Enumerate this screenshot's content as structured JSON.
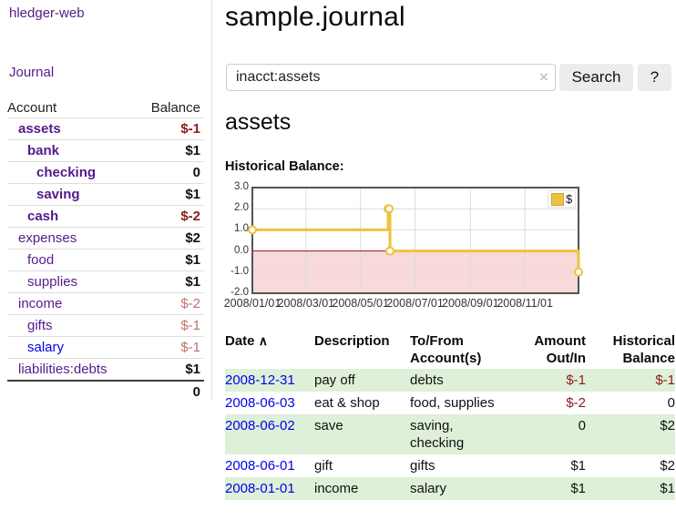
{
  "colors": {
    "link_purple": "#551a8b",
    "link_blue": "#0000ee",
    "negative_strong": "#8b1a1a",
    "negative_dim": "#c0706e",
    "row_green": "#dff0d8",
    "chart_line_gold": "#edc240",
    "chart_negative_fill": "#f9d9d9",
    "chart_border": "#545454",
    "button_bg": "#ececec"
  },
  "sidebar": {
    "brand": "hledger-web",
    "journal_link": "Journal",
    "accounts_table": {
      "headers": {
        "account": "Account",
        "balance": "Balance"
      },
      "rows": [
        {
          "name": "assets",
          "balance": "$-1"
        },
        {
          "name": "bank",
          "balance": "$1"
        },
        {
          "name": "checking",
          "balance": "0"
        },
        {
          "name": "saving",
          "balance": "$1"
        },
        {
          "name": "cash",
          "balance": "$-2"
        },
        {
          "name": "expenses",
          "balance": "$2"
        },
        {
          "name": "food",
          "balance": "$1"
        },
        {
          "name": "supplies",
          "balance": "$1"
        },
        {
          "name": "income",
          "balance": "$-2"
        },
        {
          "name": "gifts",
          "balance": "$-1"
        },
        {
          "name": "salary",
          "balance": "$-1"
        },
        {
          "name": "liabilities:debts",
          "balance": "$1"
        }
      ],
      "total": "0"
    }
  },
  "header": {
    "title": "sample.journal"
  },
  "search": {
    "query": "inacct:assets",
    "clear_icon": "×",
    "button_label": "Search",
    "help_label": "?"
  },
  "account_page": {
    "heading": "assets",
    "chart_label": "Historical Balance:"
  },
  "chart_data": {
    "type": "line",
    "step": true,
    "title": "Historical Balance",
    "series": [
      {
        "name": "$",
        "color": "#edc240",
        "points": [
          [
            "2008-01-01",
            1
          ],
          [
            "2008-06-01",
            2
          ],
          [
            "2008-06-02",
            2
          ],
          [
            "2008-06-03",
            0
          ],
          [
            "2008-12-31",
            -1
          ]
        ]
      }
    ],
    "x_range": [
      "2008-01-01",
      "2008-12-31"
    ],
    "ylim": [
      -2,
      3
    ],
    "y_ticks": [
      "3.0",
      "2.0",
      "1.0",
      "0.0",
      "-1.0",
      "-2.0"
    ],
    "x_ticks": [
      "2008/01/01",
      "2008/03/01",
      "2008/05/01",
      "2008/07/01",
      "2008/09/01",
      "2008/11/01"
    ],
    "legend": {
      "label": "$",
      "position": "top-right"
    },
    "grid": true,
    "zero_line_color": "#8b1a1a",
    "negative_fill": "#f9d9d9"
  },
  "register": {
    "headers": {
      "date": "Date",
      "sort_icon": "∧",
      "description": "Description",
      "accounts": "To/From Account(s)",
      "amount": "Amount Out/In",
      "balance": "Historical Balance"
    },
    "rows": [
      {
        "date": "2008-12-31",
        "description": "pay off",
        "accounts": "debts",
        "amount": "$-1",
        "balance": "$-1"
      },
      {
        "date": "2008-06-03",
        "description": "eat & shop",
        "accounts": "food, supplies",
        "amount": "$-2",
        "balance": "0"
      },
      {
        "date": "2008-06-02",
        "description": "save",
        "accounts": "saving, checking",
        "amount": "0",
        "balance": "$2"
      },
      {
        "date": "2008-06-01",
        "description": "gift",
        "accounts": "gifts",
        "amount": "$1",
        "balance": "$2"
      },
      {
        "date": "2008-01-01",
        "description": "income",
        "accounts": "salary",
        "amount": "$1",
        "balance": "$1"
      }
    ]
  }
}
